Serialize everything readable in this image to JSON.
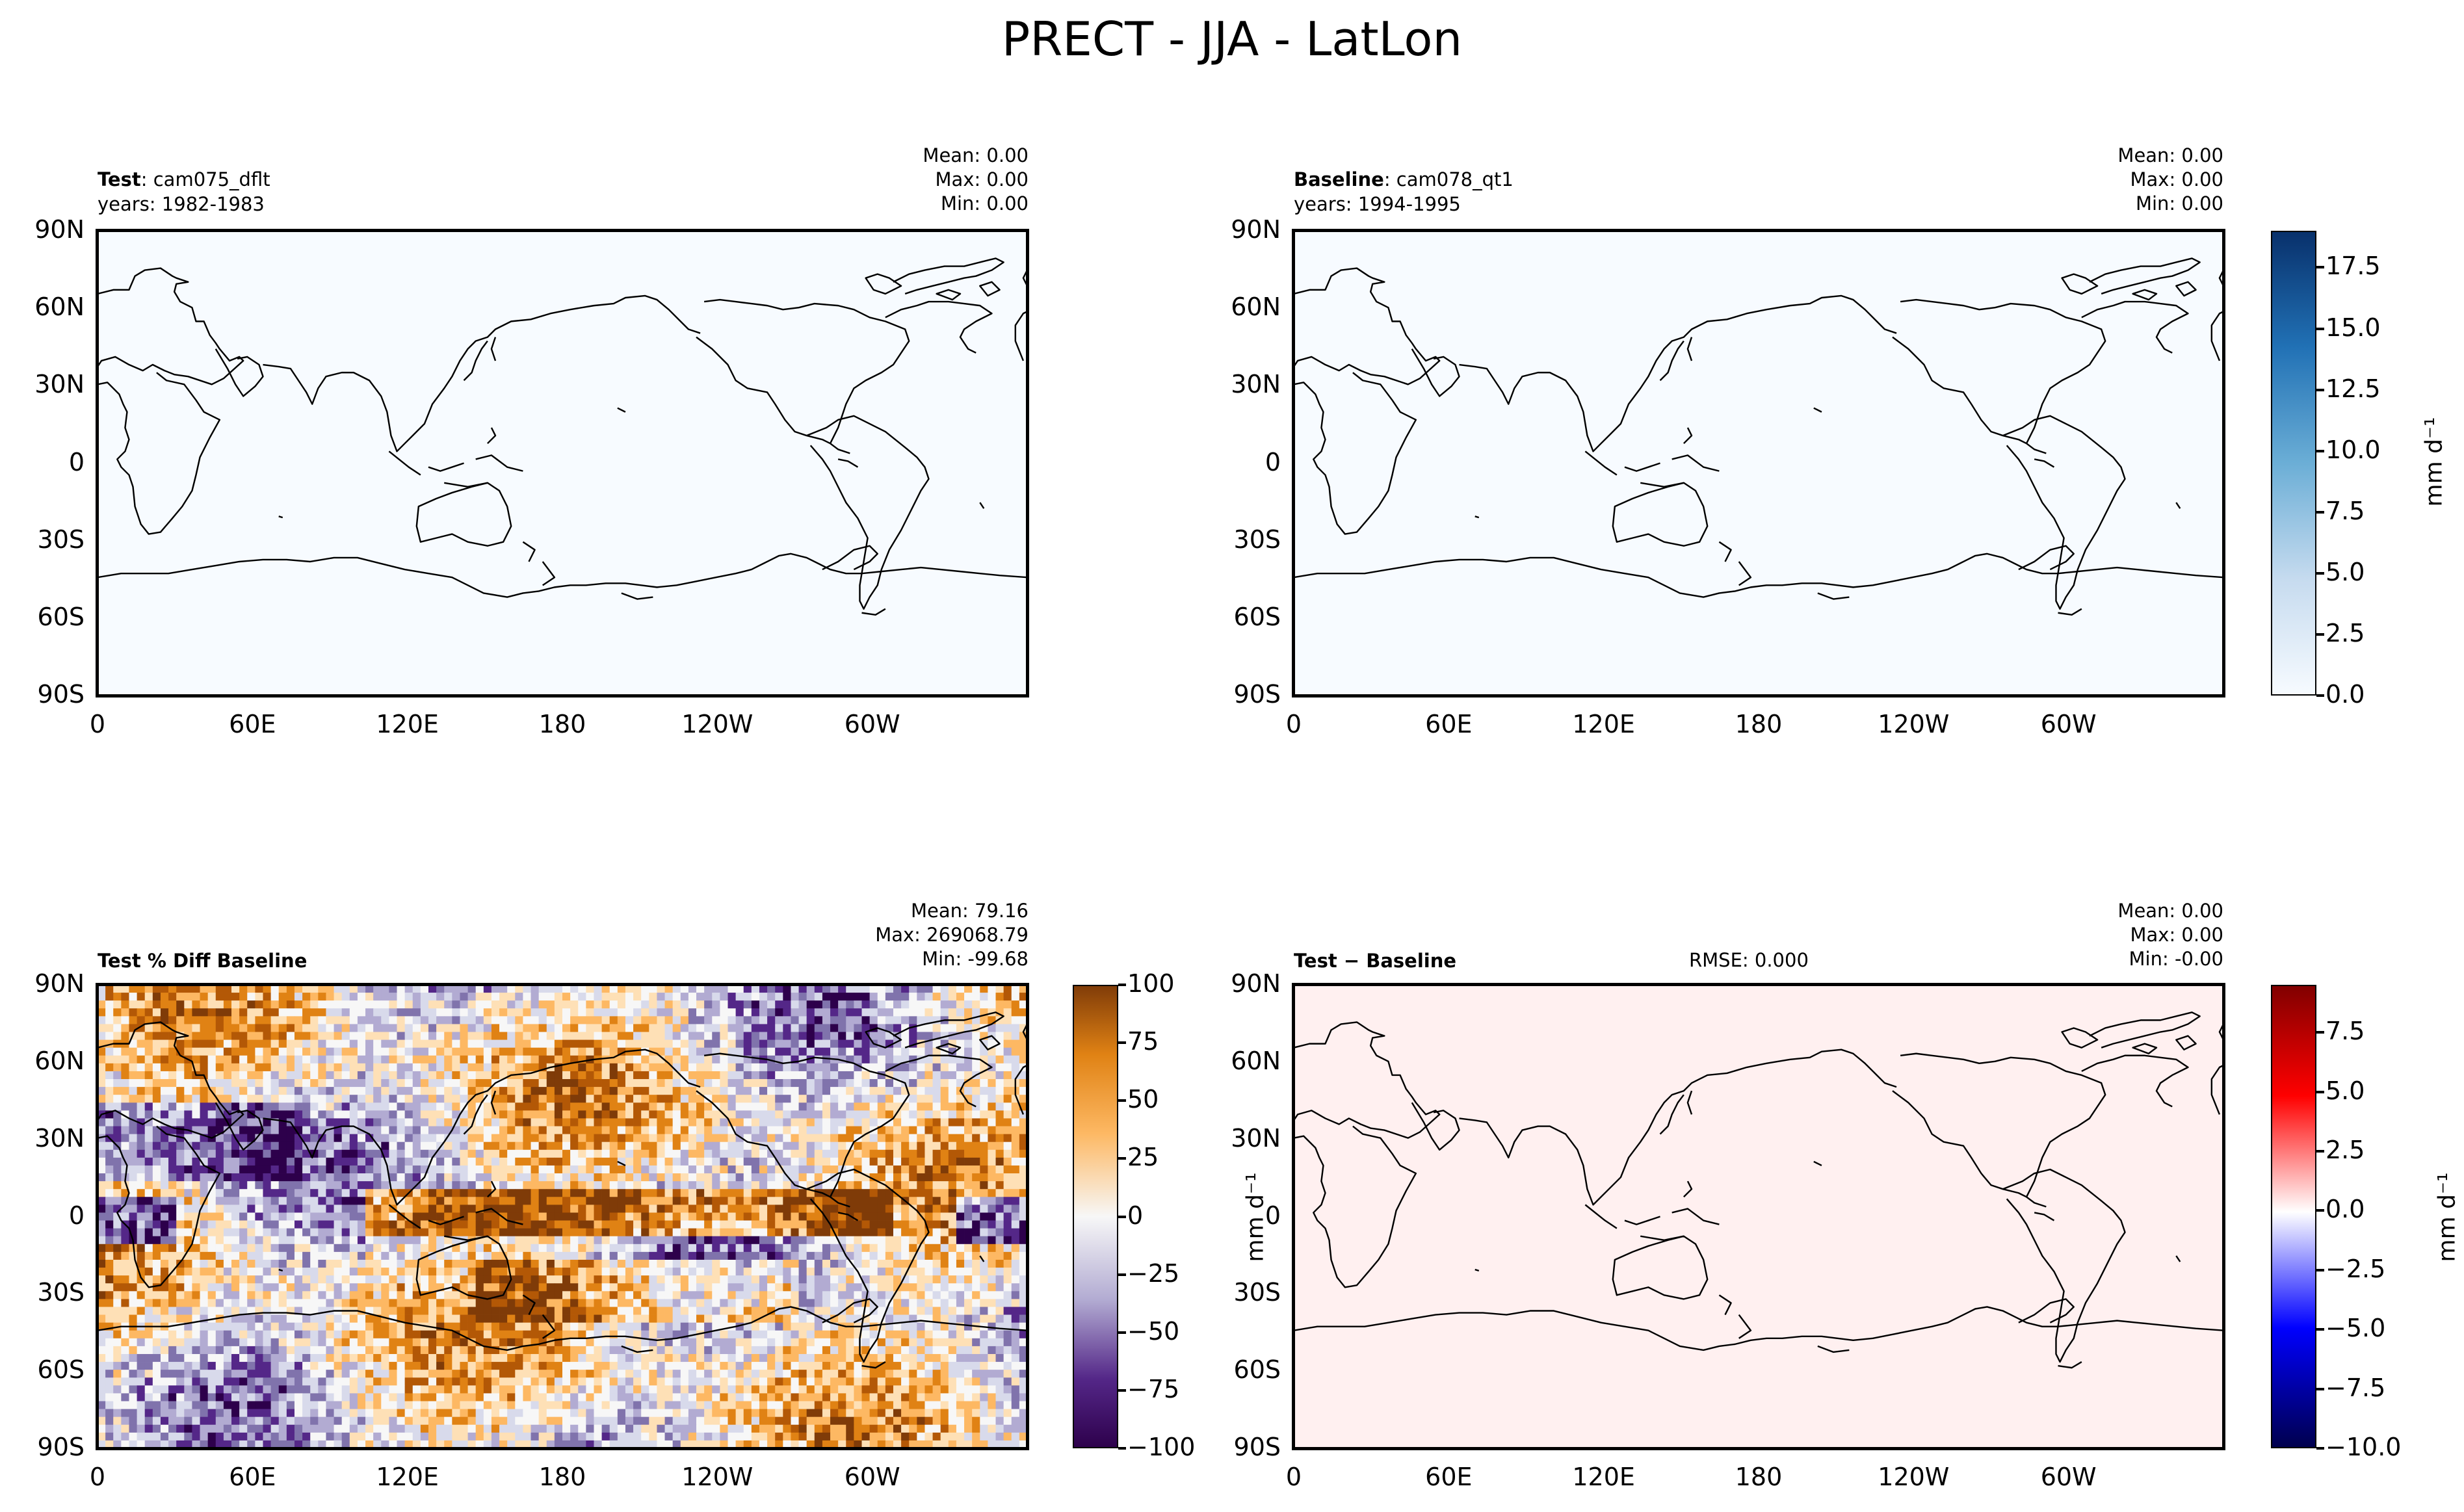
{
  "figure": {
    "title": "PRECT - JJA - LatLon"
  },
  "panels": {
    "test": {
      "title_bold": "Test",
      "title_rest": ": cam075_dflt",
      "years": "years: 1982-1983",
      "stats": [
        "Mean:  0.00",
        "Max:  0.00",
        "Min:  0.00"
      ]
    },
    "baseline": {
      "title_bold": "Baseline",
      "title_rest": ": cam078_qt1",
      "years": "years: 1994-1995",
      "stats": [
        "Mean:  0.00",
        "Max:  0.00",
        "Min:  0.00"
      ]
    },
    "pctdiff": {
      "title_bold": "Test % Diff Baseline",
      "stats": [
        "Mean: 79.16",
        "Max: 269068.79",
        "Min: -99.68"
      ]
    },
    "diff": {
      "title_bold": "Test − Baseline",
      "rmse": "RMSE: 0.000",
      "stats": [
        "Mean:  0.00",
        "Max:  0.00",
        "Min: -0.00"
      ]
    }
  },
  "axes": {
    "lat_ticks": [
      "90N",
      "60N",
      "30N",
      "0",
      "30S",
      "60S",
      "90S"
    ],
    "lon_ticks": [
      "0",
      "60E",
      "120E",
      "180",
      "120W",
      "60W"
    ]
  },
  "colorbars": {
    "top": {
      "label": "mm d⁻¹",
      "ticks": [
        "0.0",
        "2.5",
        "5.0",
        "7.5",
        "10.0",
        "12.5",
        "15.0",
        "17.5"
      ],
      "range": [
        0,
        19
      ]
    },
    "pct": {
      "label": "",
      "ticks": [
        "100",
        "75",
        "50",
        "25",
        "0",
        "−25",
        "−50",
        "−75",
        "−100"
      ],
      "range": [
        -100,
        100
      ]
    },
    "diff": {
      "label": "mm d⁻¹",
      "ticks": [
        "7.5",
        "5.0",
        "2.5",
        "0.0",
        "−2.5",
        "−5.0",
        "−7.5",
        "−10.0"
      ],
      "range": [
        -10,
        9.5
      ]
    },
    "stray_label": "mm d⁻¹"
  },
  "chart_data": [
    {
      "type": "heatmap",
      "title": "Test: cam075_dflt",
      "subtitle": "years: 1982-1983",
      "x": [
        "0",
        "60E",
        "120E",
        "180",
        "120W",
        "60W"
      ],
      "y": [
        "90N",
        "60N",
        "30N",
        "0",
        "30S",
        "60S",
        "90S"
      ],
      "mean": 0.0,
      "max": 0.0,
      "min": 0.0,
      "fill_color": "#f7fbff",
      "colormap": "Blues"
    },
    {
      "type": "heatmap",
      "title": "Baseline: cam078_qt1",
      "subtitle": "years: 1994-1995",
      "x": [
        "0",
        "60E",
        "120E",
        "180",
        "120W",
        "60W"
      ],
      "y": [
        "90N",
        "60N",
        "30N",
        "0",
        "30S",
        "60S",
        "90S"
      ],
      "mean": 0.0,
      "max": 0.0,
      "min": 0.0,
      "fill_color": "#f7fbff",
      "colormap": "Blues"
    },
    {
      "type": "heatmap",
      "title": "Test % Diff Baseline",
      "x": [
        "0",
        "60E",
        "120E",
        "180",
        "120W",
        "60W"
      ],
      "y": [
        "90N",
        "60N",
        "30N",
        "0",
        "30S",
        "60S",
        "90S"
      ],
      "mean": 79.16,
      "max": 269068.79,
      "min": -99.68,
      "colormap": "PuOr"
    },
    {
      "type": "heatmap",
      "title": "Test − Baseline",
      "x": [
        "0",
        "60E",
        "120E",
        "180",
        "120W",
        "60W"
      ],
      "y": [
        "90N",
        "60N",
        "30N",
        "0",
        "30S",
        "60S",
        "90S"
      ],
      "mean": 0.0,
      "max": 0.0,
      "min": -0.0,
      "rmse": 0.0,
      "fill_color": "#fff0f0",
      "colormap": "seismic"
    }
  ]
}
